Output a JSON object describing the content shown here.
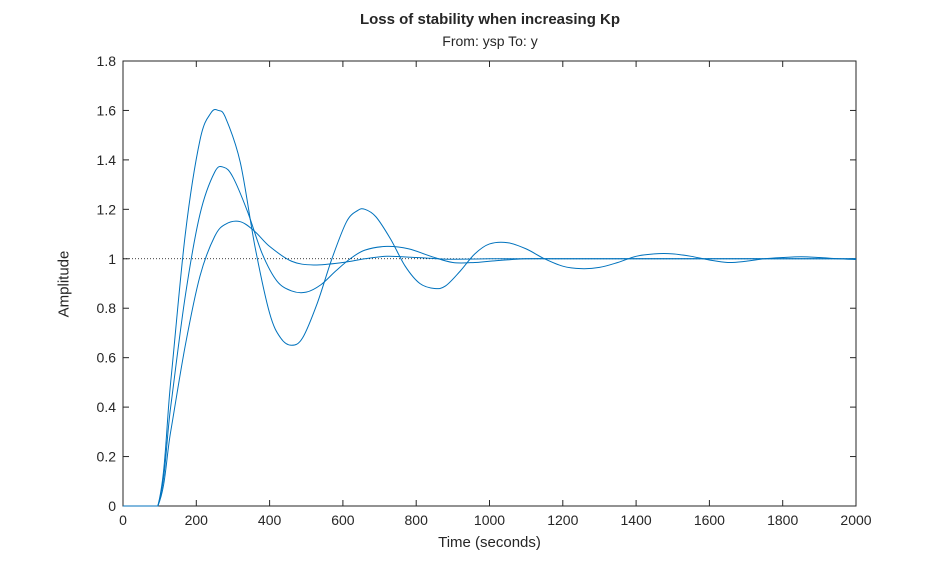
{
  "chart_data": {
    "type": "line",
    "title": "Loss of stability when increasing Kp",
    "subtitle": "From: ysp  To: y",
    "xlabel": "Time (seconds)",
    "ylabel": "Amplitude",
    "xlim": [
      0,
      2000
    ],
    "ylim": [
      0,
      1.8
    ],
    "xticks": [
      0,
      200,
      400,
      600,
      800,
      1000,
      1200,
      1400,
      1600,
      1800,
      2000
    ],
    "yticks": [
      0,
      0.2,
      0.4,
      0.6,
      0.8,
      1,
      1.2,
      1.4,
      1.6,
      1.8
    ],
    "ytick_labels": [
      "0",
      "0.2",
      "0.4",
      "0.6",
      "0.8",
      "1",
      "1.2",
      "1.4",
      "1.6",
      "1.8"
    ],
    "grid": false,
    "reference_line": {
      "y": 1,
      "style": "dotted",
      "color": "#000000"
    },
    "line_color": "#0072BD",
    "series": [
      {
        "x": [
          0,
          95,
          130,
          170,
          210,
          250,
          280,
          320,
          360,
          400,
          460,
          520,
          600,
          660,
          720,
          800,
          860,
          900,
          1000,
          1100,
          1200,
          1400,
          1600,
          1800,
          2000
        ],
        "values": [
          0,
          0,
          0.3,
          0.65,
          0.93,
          1.09,
          1.14,
          1.15,
          1.11,
          1.05,
          0.99,
          0.975,
          0.985,
          1.0,
          1.01,
          1.005,
          1.0,
          0.998,
          1.0,
          1.0,
          1.0,
          1.0,
          1.0,
          1.0,
          1.0
        ]
      },
      {
        "x": [
          0,
          95,
          130,
          170,
          210,
          250,
          275,
          300,
          340,
          380,
          420,
          460,
          500,
          540,
          580,
          620,
          660,
          720,
          780,
          840,
          900,
          960,
          1000,
          1100,
          1200,
          1300,
          1400,
          1600,
          1800,
          2000
        ],
        "values": [
          0,
          0,
          0.4,
          0.85,
          1.18,
          1.35,
          1.37,
          1.33,
          1.19,
          1.02,
          0.91,
          0.87,
          0.865,
          0.895,
          0.95,
          1.0,
          1.035,
          1.05,
          1.04,
          1.01,
          0.985,
          0.985,
          0.99,
          1.0,
          1.0,
          1.0,
          1.0,
          1.0,
          1.0,
          1.0
        ]
      },
      {
        "x": [
          0,
          95,
          130,
          170,
          210,
          240,
          260,
          280,
          320,
          360,
          400,
          430,
          460,
          490,
          530,
          570,
          610,
          640,
          660,
          690,
          730,
          770,
          810,
          850,
          880,
          920,
          960,
          1000,
          1050,
          1100,
          1150,
          1200,
          1250,
          1300,
          1350,
          1400,
          1450,
          1500,
          1550,
          1600,
          1650,
          1700,
          1750,
          1800,
          1850,
          1900,
          1950,
          2000
        ],
        "values": [
          0,
          0,
          0.5,
          1.1,
          1.48,
          1.59,
          1.6,
          1.57,
          1.39,
          1.05,
          0.78,
          0.68,
          0.65,
          0.68,
          0.82,
          1.0,
          1.15,
          1.195,
          1.2,
          1.17,
          1.08,
          0.97,
          0.9,
          0.88,
          0.89,
          0.95,
          1.02,
          1.06,
          1.065,
          1.04,
          1.0,
          0.97,
          0.96,
          0.965,
          0.985,
          1.01,
          1.02,
          1.02,
          1.01,
          0.995,
          0.985,
          0.99,
          1.0,
          1.005,
          1.008,
          1.005,
          1.0,
          0.997
        ]
      }
    ]
  }
}
